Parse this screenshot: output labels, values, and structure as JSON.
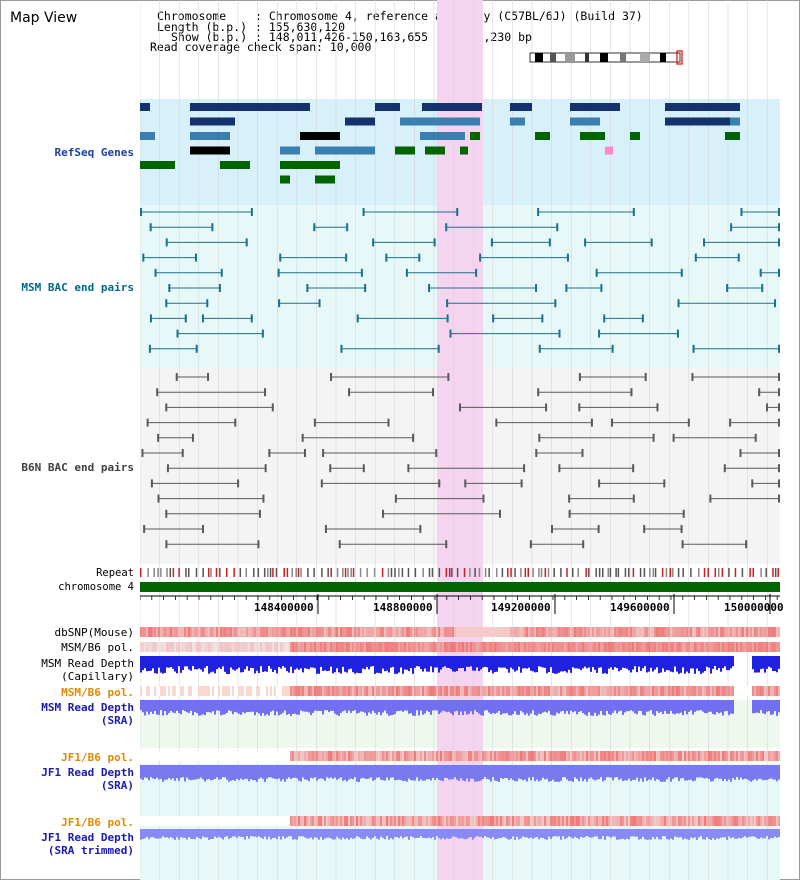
{
  "window": {
    "title": "Map View"
  },
  "info": {
    "chromosome_key": "Chromosome",
    "chromosome_val": ": Chromosome 4, reference assembly (C57BL/6J) (Build 37)",
    "length_key": "Length (b.p.)",
    "length_val": ": 155,630,120",
    "show_key": "Show (b.p.)",
    "show_val": ": 148,011,426-150,163,655 : 2,152,230 bp",
    "span_key": "Read coverage check span",
    "span_val": ": 10,000"
  },
  "tracks": {
    "refseq": "RefSeq Genes",
    "msm_bac": "MSM BAC end pairs",
    "b6n_bac": "B6N BAC end pairs",
    "repeat": "Repeat",
    "chromosome": "chromosome 4",
    "dbsnp": "dbSNP(Mouse)",
    "msm_b6_pol_1": "MSM/B6 pol.",
    "msm_depth_cap_1": "MSM Read Depth",
    "msm_depth_cap_2": "(Capillary)",
    "msm_b6_pol_2": "MSM/B6 pol.",
    "msm_depth_sra_1": "MSM Read Depth",
    "msm_depth_sra_2": "(SRA)",
    "jf1_pol_1": "JF1/B6 pol.",
    "jf1_depth_1": "JF1 Read Depth",
    "jf1_depth_2": "(SRA)",
    "jf1_pol_2": "JF1/B6 pol.",
    "jf1_trim_1": "JF1 Read Depth",
    "jf1_trim_2": "(SRA trimmed)"
  },
  "axis": {
    "ticks": [
      "148400000",
      "148800000",
      "149200000",
      "149600000",
      "150000000"
    ]
  },
  "colors": {
    "refseq_bg": "#d8f0fa",
    "msm_bg": "#e6f8f8",
    "b6n_bg": "#f4f4f4",
    "highlight": "#f5d4f0",
    "refseq_label": "#1c3fa0",
    "msm_label": "#006a8a",
    "b6n_label": "#404040",
    "pol_label": "#e08a00",
    "depth_label": "#1a1ab0",
    "chrom_bar": "#006400"
  }
}
